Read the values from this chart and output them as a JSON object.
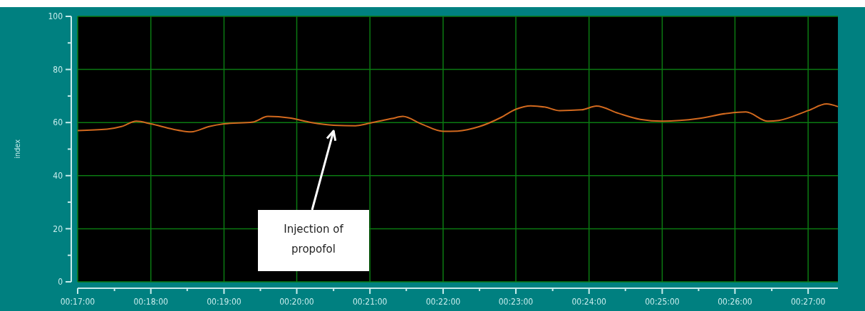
{
  "chart_data": {
    "type": "line",
    "ylabel": "index",
    "x": [
      0.2833,
      0.29,
      0.2933,
      0.2967,
      0.3,
      0.305,
      0.3092,
      0.3133,
      0.3167,
      0.3233,
      0.3267,
      0.3317,
      0.3367,
      0.3417,
      0.3467,
      0.35,
      0.355,
      0.3575,
      0.3617,
      0.3667,
      0.37,
      0.375,
      0.38,
      0.3833,
      0.3867,
      0.39,
      0.3933,
      0.3983,
      0.4017,
      0.4067,
      0.4117,
      0.4167,
      0.425,
      0.4317,
      0.4358,
      0.4408,
      0.4433,
      0.45,
      0.4542,
      0.4568
    ],
    "series": [
      {
        "color": "#d2691e",
        "values": [
          57,
          57.5,
          58.5,
          60.5,
          59.5,
          57.5,
          56.5,
          58.5,
          59.5,
          60.2,
          62.3,
          61.7,
          60,
          59,
          58.8,
          59.8,
          61.5,
          62.3,
          59.5,
          56.7,
          56.8,
          58.5,
          62,
          65,
          66.3,
          65.8,
          64.5,
          64.8,
          66.2,
          63.5,
          61.2,
          60.5,
          61.5,
          63.5,
          64,
          60.5,
          60.8,
          64.5,
          67,
          66
        ]
      }
    ],
    "xlim": [
      0.2833,
      0.4568
    ],
    "xticks": [
      {
        "value": 0.2833,
        "label": "00:17:00"
      },
      {
        "value": 0.2917,
        "label": null
      },
      {
        "value": 0.3,
        "label": "00:18:00"
      },
      {
        "value": 0.3083,
        "label": null
      },
      {
        "value": 0.3167,
        "label": "00:19:00"
      },
      {
        "value": 0.325,
        "label": null
      },
      {
        "value": 0.3333,
        "label": "00:20:00"
      },
      {
        "value": 0.3417,
        "label": null
      },
      {
        "value": 0.35,
        "label": "00:21:00"
      },
      {
        "value": 0.3583,
        "label": null
      },
      {
        "value": 0.3667,
        "label": "00:22:00"
      },
      {
        "value": 0.375,
        "label": null
      },
      {
        "value": 0.3833,
        "label": "00:23:00"
      },
      {
        "value": 0.3917,
        "label": null
      },
      {
        "value": 0.4,
        "label": "00:24:00"
      },
      {
        "value": 0.4083,
        "label": null
      },
      {
        "value": 0.4167,
        "label": "00:25:00"
      },
      {
        "value": 0.425,
        "label": null
      },
      {
        "value": 0.4333,
        "label": "00:26:00"
      },
      {
        "value": 0.4417,
        "label": null
      },
      {
        "value": 0.45,
        "label": "00:27:00"
      }
    ],
    "ylim": [
      0,
      100
    ],
    "yticks": [
      0,
      {
        "value": 10,
        "label": null
      },
      20,
      {
        "value": 30,
        "label": null
      },
      40,
      {
        "value": 50,
        "label": null
      },
      60,
      {
        "value": 70,
        "label": null
      },
      80,
      {
        "value": 90,
        "label": null
      },
      100
    ],
    "grid": true,
    "marker": "none",
    "line_style": "solid",
    "annotations": [
      {
        "text": "Injection of propofol",
        "x": 0.3417,
        "y": 59
      }
    ]
  }
}
